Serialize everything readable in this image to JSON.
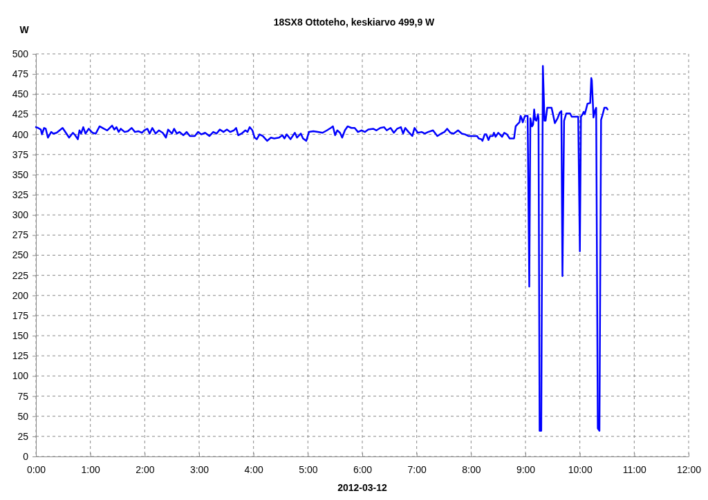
{
  "chart_data": {
    "type": "line",
    "title": "18SX8 Ottoteho, keskiarvo 499,9 W",
    "xlabel": "2012-03-12",
    "ylabel": "W",
    "xlim": [
      0,
      12
    ],
    "xticks": [
      {
        "value": 0,
        "label": "0:00"
      },
      {
        "value": 1,
        "label": "1:00"
      },
      {
        "value": 2,
        "label": "2:00"
      },
      {
        "value": 3,
        "label": "3:00"
      },
      {
        "value": 4,
        "label": "4:00"
      },
      {
        "value": 5,
        "label": "5:00"
      },
      {
        "value": 6,
        "label": "6:00"
      },
      {
        "value": 7,
        "label": "7:00"
      },
      {
        "value": 8,
        "label": "8:00"
      },
      {
        "value": 9,
        "label": "9:00"
      },
      {
        "value": 10,
        "label": "10:00"
      },
      {
        "value": 11,
        "label": "11:00"
      },
      {
        "value": 12,
        "label": "12:00"
      }
    ],
    "ylim": [
      0,
      500
    ],
    "yticks": [
      0,
      25,
      50,
      75,
      100,
      125,
      150,
      175,
      200,
      225,
      250,
      275,
      300,
      325,
      350,
      375,
      400,
      425,
      450,
      475,
      500
    ],
    "grid": true,
    "line_style": "solid",
    "color": "#0000ff",
    "x": [
      0,
      0.04,
      0.09,
      0.11,
      0.15,
      0.18,
      0.22,
      0.28,
      0.32,
      0.38,
      0.49,
      0.55,
      0.61,
      0.68,
      0.72,
      0.77,
      0.8,
      0.83,
      0.87,
      0.91,
      0.97,
      1.04,
      1.1,
      1.17,
      1.25,
      1.31,
      1.4,
      1.44,
      1.48,
      1.52,
      1.56,
      1.63,
      1.69,
      1.76,
      1.82,
      1.88,
      1.95,
      1.99,
      2.05,
      2.09,
      2.14,
      2.2,
      2.26,
      2.33,
      2.39,
      2.43,
      2.5,
      2.54,
      2.59,
      2.64,
      2.71,
      2.77,
      2.83,
      2.92,
      2.98,
      3.04,
      3.11,
      3.19,
      3.26,
      3.32,
      3.38,
      3.45,
      3.51,
      3.57,
      3.64,
      3.68,
      3.72,
      3.78,
      3.85,
      3.89,
      3.93,
      3.98,
      4.02,
      4.06,
      4.11,
      4.17,
      4.25,
      4.32,
      4.38,
      4.47,
      4.53,
      4.57,
      4.61,
      4.68,
      4.76,
      4.8,
      4.87,
      4.91,
      4.97,
      5.02,
      5.1,
      5.18,
      5.27,
      5.35,
      5.42,
      5.46,
      5.5,
      5.54,
      5.59,
      5.63,
      5.68,
      5.73,
      5.8,
      5.86,
      5.92,
      5.99,
      6.05,
      6.11,
      6.2,
      6.26,
      6.33,
      6.4,
      6.45,
      6.52,
      6.58,
      6.64,
      6.71,
      6.75,
      6.79,
      6.85,
      6.92,
      6.96,
      7.02,
      7.09,
      7.15,
      7.21,
      7.3,
      7.38,
      7.45,
      7.51,
      7.56,
      7.62,
      7.68,
      7.76,
      7.83,
      7.89,
      7.95,
      8.11,
      8.14,
      8.19,
      8.21,
      8.25,
      8.28,
      8.32,
      8.35,
      8.4,
      8.42,
      8.45,
      8.5,
      8.53,
      8.57,
      8.61,
      8.66,
      8.71,
      8.79,
      8.82,
      8.86,
      8.89,
      8.91,
      8.93,
      8.95,
      8.99,
      9.04,
      9.07,
      9.09,
      9.12,
      9.14,
      9.16,
      9.18,
      9.2,
      9.23,
      9.24,
      9.26,
      9.29,
      9.32,
      9.35,
      9.37,
      9.4,
      9.48,
      9.5,
      9.54,
      9.59,
      9.63,
      9.66,
      9.68,
      9.71,
      9.75,
      9.82,
      9.85,
      9.97,
      10,
      10.02,
      10.05,
      10.07,
      10.09,
      10.11,
      10.14,
      10.19,
      10.21,
      10.22,
      10.24,
      10.25,
      10.28,
      10.3,
      10.33,
      10.36,
      10.39,
      10.42,
      10.45,
      10.49,
      10.51
    ],
    "values": [
      409,
      408,
      406,
      400,
      408,
      407,
      396,
      403,
      401,
      402,
      408,
      402,
      396,
      402,
      399,
      394,
      405,
      401,
      409,
      401,
      407,
      402,
      401,
      410,
      407,
      405,
      411,
      406,
      409,
      403,
      407,
      403,
      404,
      408,
      403,
      404,
      402,
      405,
      407,
      401,
      408,
      401,
      405,
      402,
      396,
      406,
      401,
      407,
      401,
      403,
      399,
      403,
      398,
      398,
      403,
      400,
      402,
      398,
      403,
      401,
      406,
      403,
      406,
      403,
      405,
      408,
      399,
      401,
      405,
      403,
      409,
      405,
      396,
      394,
      400,
      398,
      392,
      396,
      395,
      396,
      399,
      395,
      400,
      394,
      402,
      396,
      401,
      395,
      392,
      403,
      404,
      403,
      402,
      405,
      408,
      410,
      399,
      405,
      402,
      396,
      405,
      410,
      408,
      408,
      403,
      405,
      403,
      406,
      407,
      405,
      408,
      409,
      405,
      408,
      402,
      407,
      409,
      401,
      408,
      403,
      398,
      408,
      402,
      403,
      401,
      403,
      405,
      398,
      401,
      403,
      407,
      402,
      401,
      405,
      401,
      400,
      398,
      398,
      395,
      394,
      392,
      400,
      400,
      393,
      398,
      398,
      402,
      397,
      402,
      400,
      397,
      402,
      400,
      395,
      395,
      410,
      413,
      415,
      423,
      420,
      415,
      423,
      423,
      211,
      420,
      410,
      412,
      431,
      418,
      417,
      425,
      420,
      32,
      32,
      485,
      417,
      417,
      433,
      433,
      427,
      414,
      420,
      427,
      429,
      224,
      417,
      426,
      426,
      422,
      422,
      255,
      422,
      425,
      428,
      425,
      430,
      438,
      439,
      470,
      467,
      438,
      421,
      430,
      433,
      35,
      32,
      418,
      425,
      433,
      433,
      431
    ]
  }
}
